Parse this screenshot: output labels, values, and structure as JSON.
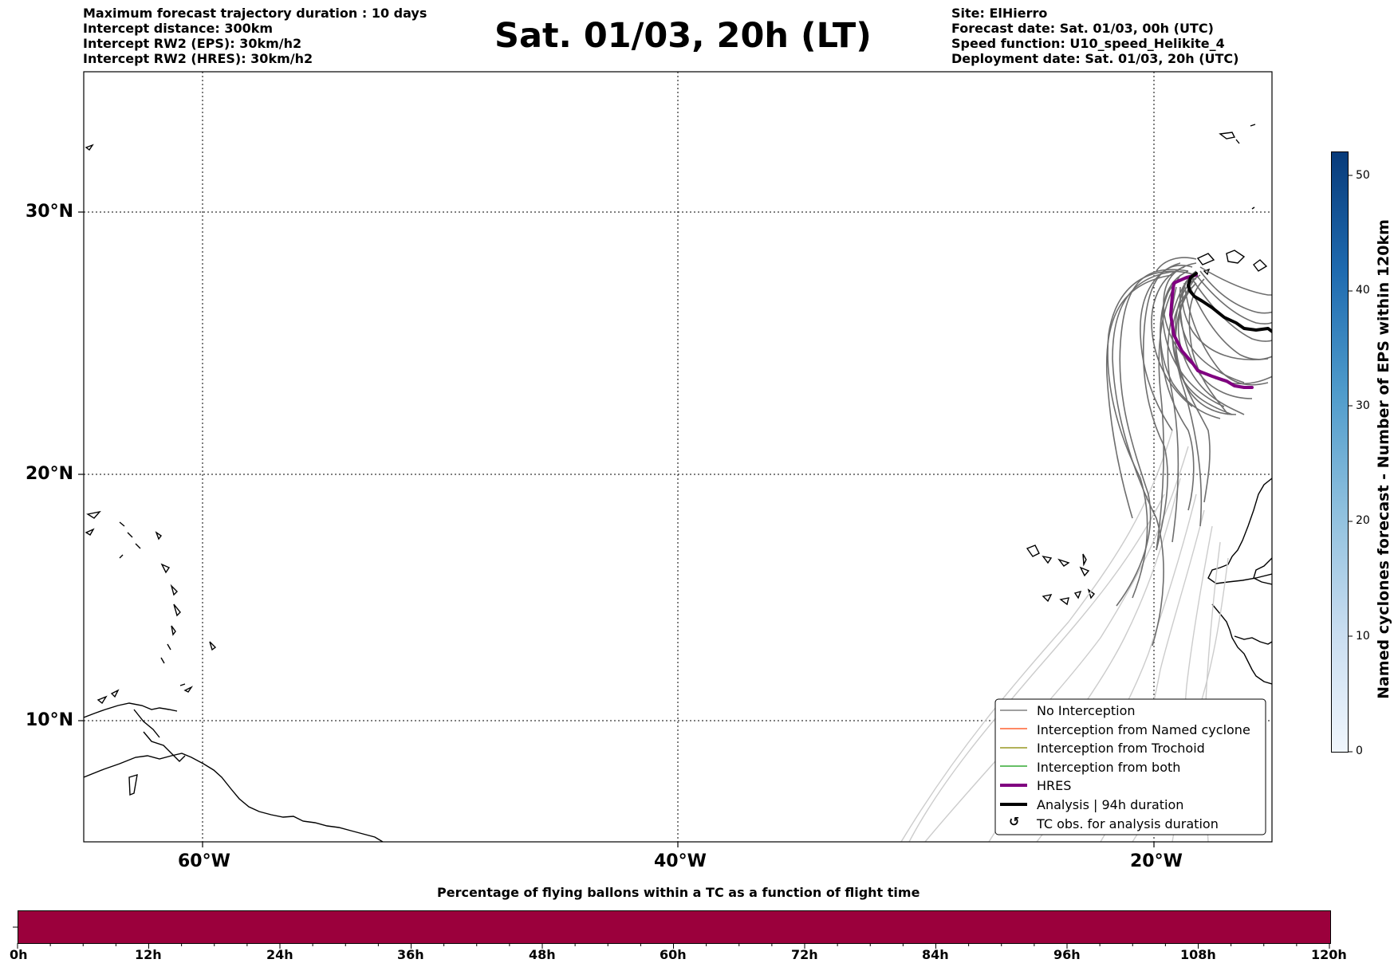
{
  "header": {
    "left_lines": [
      "Maximum forecast trajectory duration : 10 days",
      "Intercept distance: 300km",
      "Intercept RW2 (EPS):  30km/h2",
      "Intercept RW2 (HRES): 30km/h2"
    ],
    "title": "Sat. 01/03, 20h (LT)",
    "right_lines": [
      "Site: ElHierro",
      "Forecast date: Sat. 01/03, 00h (UTC)",
      "Speed function: U10_speed_Helikite_4",
      "Deployment date: Sat. 01/03, 20h (UTC)"
    ]
  },
  "map": {
    "lat_labels": [
      "30°N",
      "20°N",
      "10°N"
    ],
    "lon_labels": [
      "60°W",
      "40°W",
      "20°W"
    ],
    "legend": [
      {
        "label": "No Interception",
        "color": "#808080"
      },
      {
        "label": "Interception from Named cyclone",
        "color": "#ff6030"
      },
      {
        "label": "Interception from Trochoid",
        "color": "#999922"
      },
      {
        "label": "Interception from both",
        "color": "#33aa33"
      },
      {
        "label": "HRES",
        "color": "#800080"
      },
      {
        "label": "Analysis | 94h duration",
        "color": "#000000"
      },
      {
        "label": "TC obs. for analysis duration",
        "color": "#000000",
        "symbol": "↺"
      }
    ]
  },
  "colorbar": {
    "label": "Named cyclones forecast - Number of EPS within 120km",
    "ticks": [
      "0",
      "10",
      "20",
      "30",
      "40",
      "50"
    ]
  },
  "timebar": {
    "title": "Percentage of flying ballons within a TC as a function of flight time",
    "color": "#9b003c",
    "ticks": [
      "0h",
      "12h",
      "24h",
      "36h",
      "48h",
      "60h",
      "72h",
      "84h",
      "96h",
      "108h",
      "120h"
    ]
  }
}
